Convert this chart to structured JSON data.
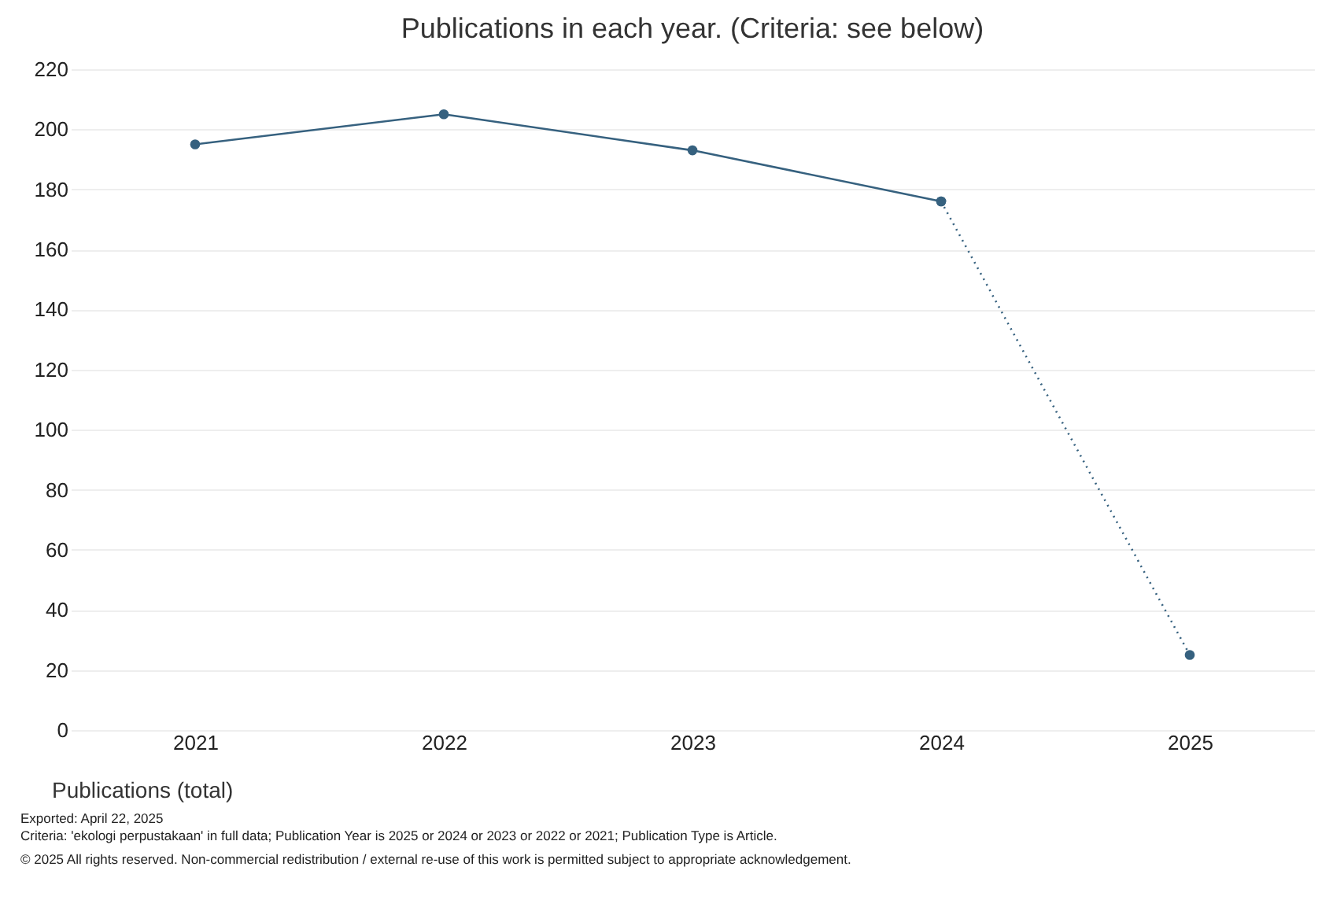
{
  "chart_data": {
    "type": "line",
    "title": "Publications in each year. (Criteria: see below)",
    "categories": [
      "2021",
      "2022",
      "2023",
      "2024",
      "2025"
    ],
    "series": [
      {
        "name": "Publications (total)",
        "color": "#36617f",
        "values": [
          195,
          205,
          193,
          176,
          null
        ],
        "line_style": "solid"
      },
      {
        "color": "#36617f",
        "values": [
          null,
          null,
          null,
          176,
          25
        ],
        "line_style": "dotted"
      }
    ],
    "ylim": [
      0,
      220
    ],
    "yticks": [
      0,
      20,
      40,
      60,
      80,
      100,
      120,
      140,
      160,
      180,
      200,
      220
    ],
    "grid": "y",
    "marker": "circle",
    "legend": "bottom left",
    "annotations": [
      "Exported: April 22, 2025",
      "Criteria: 'ekologi perpustakaan' in full data; Publication Year is 2025 or 2024 or 2023 or 2022 or 2021; Publication Type is Article.",
      "© 2025 All rights reserved. Non-commercial redistribution / external re-use of this work is permitted subject to appropriate acknowledgement."
    ]
  }
}
